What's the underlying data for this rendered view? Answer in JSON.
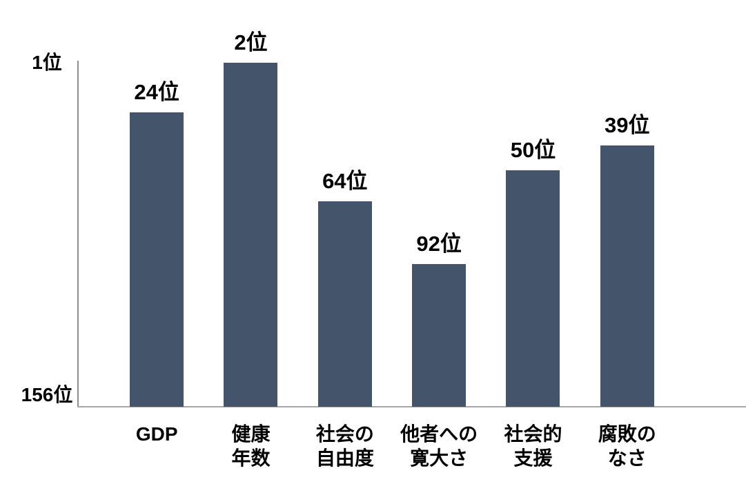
{
  "chart_data": {
    "type": "bar",
    "title": "",
    "categories": [
      [
        "GDP"
      ],
      [
        "健康",
        "年数"
      ],
      [
        "社会の",
        "自由度"
      ],
      [
        "他者への",
        "寛大さ"
      ],
      [
        "社会的",
        "支援"
      ],
      [
        "腐敗の",
        "なさ"
      ]
    ],
    "values": [
      24,
      2,
      64,
      92,
      50,
      39
    ],
    "value_labels": [
      "24位",
      "2位",
      "64位",
      "92位",
      "50位",
      "39位"
    ],
    "y_axis": {
      "top_label": "1位",
      "bottom_label": "156位",
      "min_rank": 1,
      "max_rank": 156,
      "inverted": true
    },
    "xlabel": "",
    "ylabel": "",
    "legend": "none",
    "grid": false,
    "bar_color": "#44546A",
    "axis_color_y": "#8c8c8c",
    "axis_color_x": "#a6a6a6",
    "text_color": "#000000",
    "background_color": "#ffffff"
  }
}
